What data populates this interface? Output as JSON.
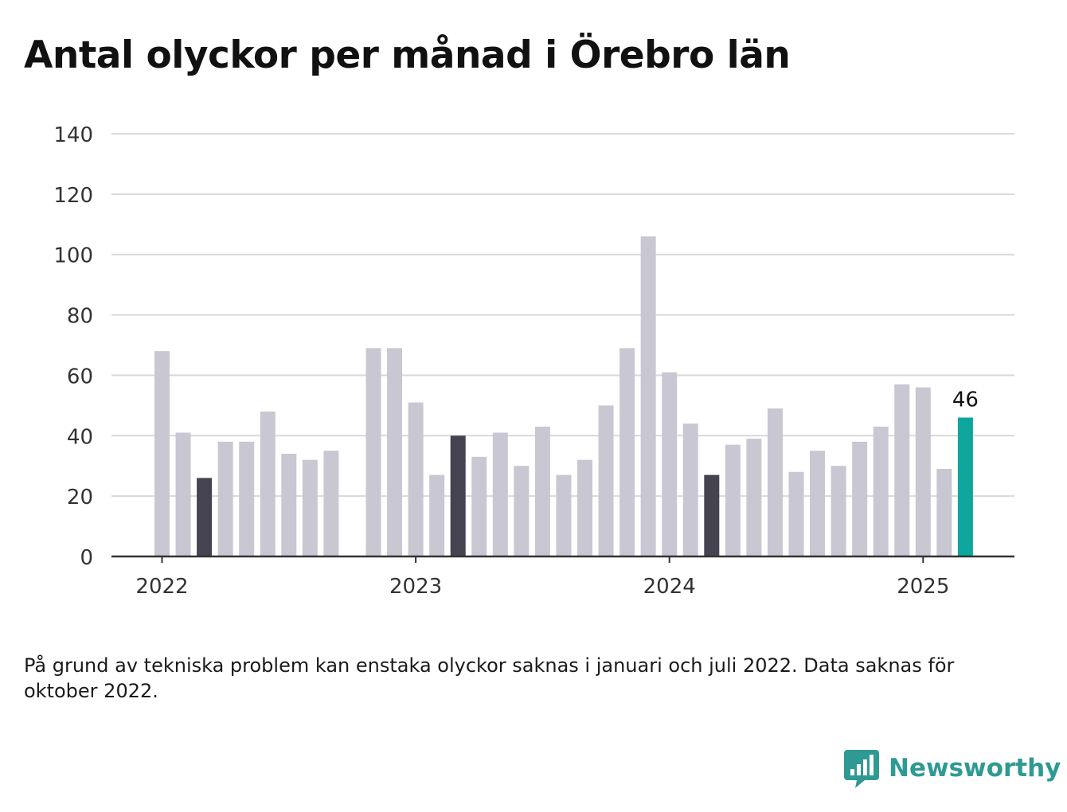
{
  "title": "Antal olyckor per månad i Örebro län",
  "note": "På grund av tekniska problem kan enstaka olyckor saknas i januari och juli 2022. Data saknas för oktober 2022.",
  "brand": {
    "name": "Newsworthy",
    "icon": "newsworthy-logo-icon",
    "color": "#2e9a93"
  },
  "colors": {
    "bar": "#c9c7d2",
    "highlight": "#44434f",
    "latest": "#0ea69d",
    "grid": "#d9d9d9",
    "axis": "#333333"
  },
  "chart_data": {
    "type": "bar",
    "ylim": [
      0,
      140
    ],
    "yticks": [
      0,
      20,
      40,
      60,
      80,
      100,
      120,
      140
    ],
    "xticks": [
      "2022",
      "2023",
      "2024",
      "2025"
    ],
    "grid": true,
    "last_value_label": "46",
    "highlight_rule": "samma månad som senaste månaden (mars)",
    "months": [
      "2022-01",
      "2022-02",
      "2022-03",
      "2022-04",
      "2022-05",
      "2022-06",
      "2022-07",
      "2022-08",
      "2022-09",
      "2022-10",
      "2022-11",
      "2022-12",
      "2023-01",
      "2023-02",
      "2023-03",
      "2023-04",
      "2023-05",
      "2023-06",
      "2023-07",
      "2023-08",
      "2023-09",
      "2023-10",
      "2023-11",
      "2023-12",
      "2024-01",
      "2024-02",
      "2024-03",
      "2024-04",
      "2024-05",
      "2024-06",
      "2024-07",
      "2024-08",
      "2024-09",
      "2024-10",
      "2024-11",
      "2024-12",
      "2025-01",
      "2025-02",
      "2025-03"
    ],
    "values": [
      68,
      41,
      26,
      38,
      38,
      48,
      34,
      32,
      35,
      null,
      69,
      69,
      51,
      27,
      40,
      33,
      41,
      30,
      43,
      27,
      32,
      50,
      69,
      106,
      61,
      44,
      27,
      37,
      39,
      49,
      28,
      35,
      30,
      38,
      43,
      57,
      56,
      29,
      46
    ],
    "highlighted_months": [
      "2022-03",
      "2023-03",
      "2024-03"
    ],
    "latest_month": "2025-03"
  }
}
